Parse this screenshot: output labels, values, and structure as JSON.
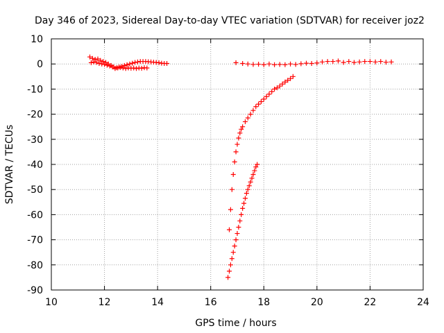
{
  "chart_data": {
    "type": "scatter",
    "title": "Day 346 of 2023, Sidereal Day-to-day VTEC variation (SDTVAR) for receiver joz2",
    "xlabel": "GPS time / hours",
    "ylabel": "SDTVAR / TECUs",
    "xlim": [
      10,
      24
    ],
    "ylim": [
      -90,
      10
    ],
    "xticks": [
      10,
      12,
      14,
      16,
      18,
      20,
      22,
      24
    ],
    "yticks": [
      10,
      0,
      -10,
      -20,
      -30,
      -40,
      -50,
      -60,
      -70,
      -80,
      -90
    ],
    "grid": true,
    "marker": "plus",
    "color": "#ff0000",
    "series": [
      {
        "x": [
          11.45,
          11.55,
          11.65,
          11.75,
          11.85,
          11.95,
          12.05,
          12.15,
          12.25,
          12.35,
          12.45,
          12.55,
          12.65,
          12.75,
          12.85,
          12.95,
          13.05,
          13.15,
          13.25,
          13.35,
          13.45,
          13.55,
          13.65,
          13.75,
          13.85,
          13.95,
          14.05,
          14.15,
          14.25,
          14.35
        ],
        "y": [
          2.8,
          2.2,
          1.8,
          2.0,
          1.4,
          1.0,
          0.6,
          0.0,
          -0.6,
          -1.2,
          -1.5,
          -1.2,
          -1.0,
          -0.6,
          -0.3,
          0.0,
          0.3,
          0.6,
          0.8,
          1.0,
          1.0,
          1.0,
          0.9,
          0.8,
          0.7,
          0.6,
          0.5,
          0.3,
          0.2,
          0.2
        ]
      },
      {
        "x": [
          11.5,
          11.6,
          11.7,
          11.8,
          11.9,
          12.0,
          12.1,
          12.2,
          12.3,
          12.4,
          12.5,
          12.6,
          12.7,
          12.8,
          12.9,
          13.0,
          13.1,
          13.2,
          13.3,
          13.4,
          13.5,
          13.6
        ],
        "y": [
          0.5,
          0.8,
          0.6,
          0.2,
          0.0,
          -0.2,
          -0.5,
          -0.8,
          -1.2,
          -1.8,
          -1.6,
          -1.4,
          -1.6,
          -1.8,
          -1.6,
          -1.7,
          -1.6,
          -1.8,
          -1.6,
          -1.7,
          -1.5,
          -1.6
        ]
      },
      {
        "x": [
          16.95,
          17.2,
          17.4,
          17.6,
          17.8,
          18.0,
          18.2,
          18.4,
          18.6,
          18.8,
          19.0,
          19.2,
          19.4,
          19.6,
          19.8,
          20.0,
          20.2,
          20.4,
          20.6,
          20.8,
          21.0,
          21.2,
          21.4,
          21.6,
          21.8,
          22.0,
          22.2,
          22.4,
          22.6,
          22.8
        ],
        "y": [
          0.5,
          0.2,
          0.0,
          -0.2,
          -0.1,
          -0.3,
          0.0,
          -0.3,
          -0.2,
          -0.3,
          0.0,
          -0.2,
          0.1,
          0.3,
          0.2,
          0.4,
          0.8,
          1.0,
          1.0,
          1.2,
          0.6,
          1.0,
          0.6,
          0.8,
          1.0,
          1.0,
          0.8,
          1.0,
          0.7,
          0.8
        ]
      },
      {
        "x": [
          16.7,
          16.75,
          16.8,
          16.85,
          16.9,
          16.95,
          17.0,
          17.05,
          17.1,
          17.15,
          17.2,
          17.3,
          17.4,
          17.5,
          17.6,
          17.7,
          17.8,
          17.9,
          18.0,
          18.1,
          18.2,
          18.3,
          18.4,
          18.5,
          18.6,
          18.7,
          18.8,
          18.9,
          19.0,
          19.1
        ],
        "y": [
          -66,
          -58,
          -50,
          -44,
          -39,
          -35,
          -32,
          -29.5,
          -27.5,
          -26,
          -25,
          -23,
          -21.5,
          -20,
          -18.5,
          -17,
          -16,
          -15,
          -14,
          -13,
          -12,
          -11,
          -10,
          -9.5,
          -8.8,
          -8,
          -7.2,
          -6.5,
          -5.8,
          -5
        ]
      },
      {
        "x": [
          16.65,
          16.7,
          16.75,
          16.8,
          16.85,
          16.9,
          16.95,
          17.0,
          17.05,
          17.1,
          17.15,
          17.2,
          17.25,
          17.3,
          17.35,
          17.4,
          17.45,
          17.5,
          17.55,
          17.6,
          17.65,
          17.7,
          17.75
        ],
        "y": [
          -85,
          -82.5,
          -80,
          -77.5,
          -75,
          -72.5,
          -70,
          -67.5,
          -65,
          -62.5,
          -60,
          -57.5,
          -55.5,
          -53.5,
          -51.5,
          -50,
          -48.5,
          -47,
          -45.5,
          -44,
          -42.5,
          -41,
          -40
        ]
      }
    ]
  }
}
